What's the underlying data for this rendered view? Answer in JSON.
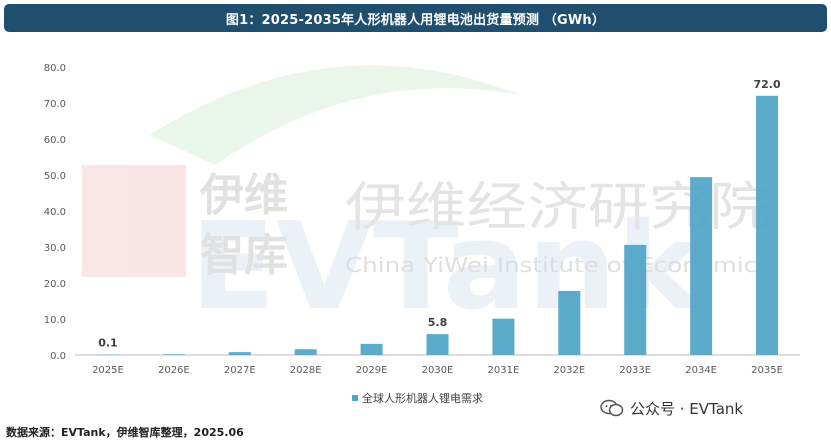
{
  "title": "图1：2025-2035年人形机器人用锂电池出货量预测 （GWh）",
  "source": "数据来源：EVTank，伊维智库整理，2025.06",
  "watermark": {
    "cn_org": "伊维经济研究院",
    "en_org": "China YiWei Institute of Economics",
    "brand": "EVTank",
    "cn_brand_1": "伊维",
    "cn_brand_2": "智库"
  },
  "wechat": {
    "label": "公众号 · EVTank",
    "icon": "wechat-icon"
  },
  "colors": {
    "title_bg": "#1f4e6e",
    "bar": "#4ea4c7"
  },
  "chart_data": {
    "type": "bar",
    "categories": [
      "2025E",
      "2026E",
      "2027E",
      "2028E",
      "2029E",
      "2030E",
      "2031E",
      "2032E",
      "2033E",
      "2034E",
      "2035E"
    ],
    "series": [
      {
        "name": "全球人形机器人锂电需求",
        "values": [
          0.1,
          0.2,
          0.8,
          1.6,
          3.1,
          5.8,
          10.1,
          17.8,
          30.6,
          49.4,
          72.0
        ]
      }
    ],
    "data_labels": [
      {
        "category": "2025E",
        "text": "0.1"
      },
      {
        "category": "2030E",
        "text": "5.8"
      },
      {
        "category": "2035E",
        "text": "72.0"
      }
    ],
    "yticks": [
      "0.0",
      "10.0",
      "20.0",
      "30.0",
      "40.0",
      "50.0",
      "60.0",
      "70.0",
      "80.0"
    ],
    "ylim": [
      0,
      80
    ],
    "grid": false,
    "legend": "bottom-center"
  }
}
